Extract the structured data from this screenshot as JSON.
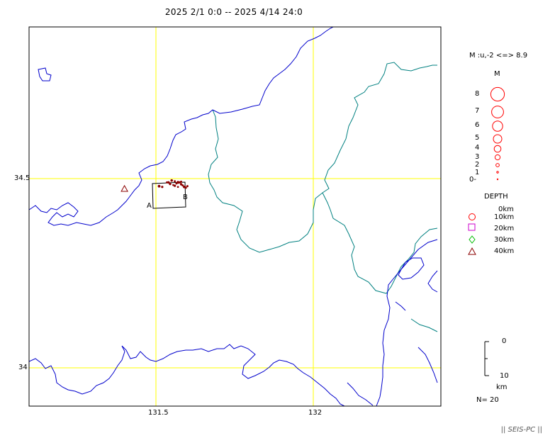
{
  "title": "2025 2/1 0:0 -- 2025 4/14 24:0",
  "map": {
    "lon_ticks": [
      "131.5",
      "132"
    ],
    "lat_ticks": [
      "34.5",
      "34"
    ],
    "cross_section": {
      "start_label": "A",
      "end_label": "B"
    },
    "colors": {
      "grid": "#ffff00",
      "coast": "#0000cc",
      "boundary": "#008080",
      "frame": "#000000",
      "event": "#8b0000"
    },
    "events": [
      {
        "lon": 131.51,
        "lat": 34.48,
        "mag": 1.2,
        "depth_km": 10
      },
      {
        "lon": 131.54,
        "lat": 34.49,
        "mag": 0.8,
        "depth_km": 11
      },
      {
        "lon": 131.55,
        "lat": 34.495,
        "mag": 1.0,
        "depth_km": 10
      },
      {
        "lon": 131.56,
        "lat": 34.493,
        "mag": 0.6,
        "depth_km": 12
      },
      {
        "lon": 131.57,
        "lat": 34.49,
        "mag": 1.4,
        "depth_km": 10
      },
      {
        "lon": 131.58,
        "lat": 34.485,
        "mag": 0.9,
        "depth_km": 11
      },
      {
        "lon": 131.575,
        "lat": 34.49,
        "mag": 0.7,
        "depth_km": 10
      },
      {
        "lon": 131.59,
        "lat": 34.478,
        "mag": 1.1,
        "depth_km": 12
      },
      {
        "lon": 131.585,
        "lat": 34.482,
        "mag": 0.5,
        "depth_km": 10
      },
      {
        "lon": 131.565,
        "lat": 34.487,
        "mag": 0.4,
        "depth_km": 11
      },
      {
        "lon": 131.555,
        "lat": 34.483,
        "mag": 0.3,
        "depth_km": 10
      },
      {
        "lon": 131.595,
        "lat": 34.476,
        "mag": 0.6,
        "depth_km": 11
      },
      {
        "lon": 131.58,
        "lat": 34.492,
        "mag": 0.5,
        "depth_km": 10
      },
      {
        "lon": 131.545,
        "lat": 34.486,
        "mag": 0.9,
        "depth_km": 12
      },
      {
        "lon": 131.52,
        "lat": 34.478,
        "mag": 0.7,
        "depth_km": 10
      },
      {
        "lon": 131.57,
        "lat": 34.478,
        "mag": 0.4,
        "depth_km": 11
      },
      {
        "lon": 131.56,
        "lat": 34.481,
        "mag": 0.8,
        "depth_km": 10
      },
      {
        "lon": 131.6,
        "lat": 34.48,
        "mag": 0.6,
        "depth_km": 10
      },
      {
        "lon": 131.535,
        "lat": 34.49,
        "mag": 0.5,
        "depth_km": 11
      },
      {
        "lon": 131.4,
        "lat": 34.473,
        "mag": 1.3,
        "depth_km": 41
      }
    ]
  },
  "legend": {
    "mag_range": "M :u,-2 <=> 8.9",
    "mag_header": "M",
    "mag_labels": [
      "8",
      "7",
      "6",
      "5",
      "4",
      "3",
      "2",
      "1",
      "0-"
    ],
    "depth_header": "DEPTH",
    "depth_labels": [
      "0km",
      "10km",
      "20km",
      "30km",
      "40km"
    ],
    "depth_colors": [
      "#ff0000",
      "#cc00cc",
      "#00bb00",
      "#8b0000"
    ],
    "scale_top": "0",
    "scale_bottom": "10",
    "scale_unit": "km",
    "count": "N= 20"
  },
  "footer": "|| SEIS-PC ||"
}
